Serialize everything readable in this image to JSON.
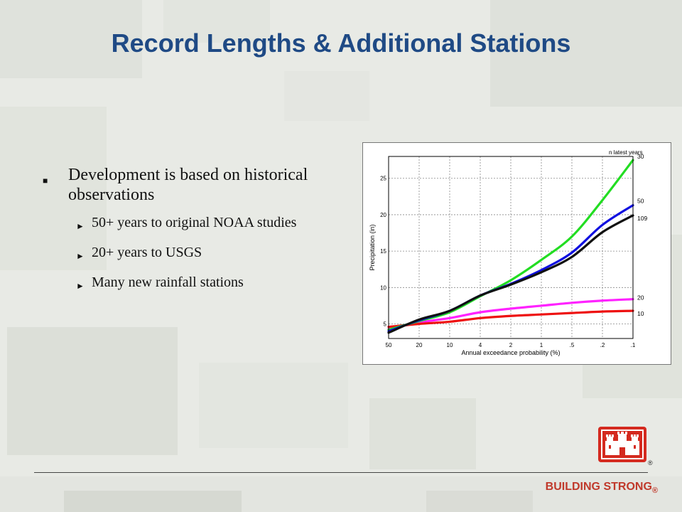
{
  "slide": {
    "title": "Record Lengths & Additional Stations",
    "bullets": {
      "main": "Development is based on historical observations",
      "sub": [
        "50+ years to original NOAA studies",
        "20+ years to USGS",
        "Many new rainfall stations"
      ]
    },
    "footer": {
      "brand": "BUILDING STRONG",
      "registered_mark": "®"
    },
    "colors": {
      "title": "#1f4a85",
      "brand": "#c0392b"
    }
  },
  "chart_data": {
    "type": "line",
    "title": "",
    "xlabel": "Annual exceedance probability (%)",
    "ylabel": "Precipitation (in)",
    "legend_title": "n latest years",
    "x_scale": "probability",
    "x_ticks": [
      50,
      20,
      10,
      4,
      2,
      1,
      0.5,
      0.2,
      0.1
    ],
    "x_tick_labels": [
      "50",
      "20",
      "10",
      "4",
      "2",
      "1",
      ".5",
      ".2",
      ".1"
    ],
    "y_ticks": [
      5,
      10,
      15,
      20,
      25
    ],
    "ylim": [
      3,
      28
    ],
    "grid": true,
    "series": [
      {
        "name": "30",
        "color": "#22dd22",
        "values": [
          4.2,
          5.4,
          6.6,
          8.8,
          11.0,
          13.8,
          17.0,
          22.0,
          27.5
        ]
      },
      {
        "name": "50",
        "color": "#1010e0",
        "values": [
          4.0,
          5.5,
          6.8,
          8.9,
          10.5,
          12.4,
          14.8,
          18.6,
          21.3
        ]
      },
      {
        "name": "109",
        "color": "#111111",
        "values": [
          3.8,
          5.6,
          6.8,
          8.9,
          10.4,
          12.1,
          14.2,
          17.6,
          19.9
        ]
      },
      {
        "name": "20",
        "color": "#ff22ff",
        "values": [
          4.3,
          5.2,
          5.8,
          6.6,
          7.1,
          7.5,
          7.9,
          8.2,
          8.4
        ]
      },
      {
        "name": "10",
        "color": "#ee1111",
        "values": [
          4.6,
          5.0,
          5.3,
          5.8,
          6.1,
          6.3,
          6.5,
          6.7,
          6.8
        ]
      }
    ]
  }
}
